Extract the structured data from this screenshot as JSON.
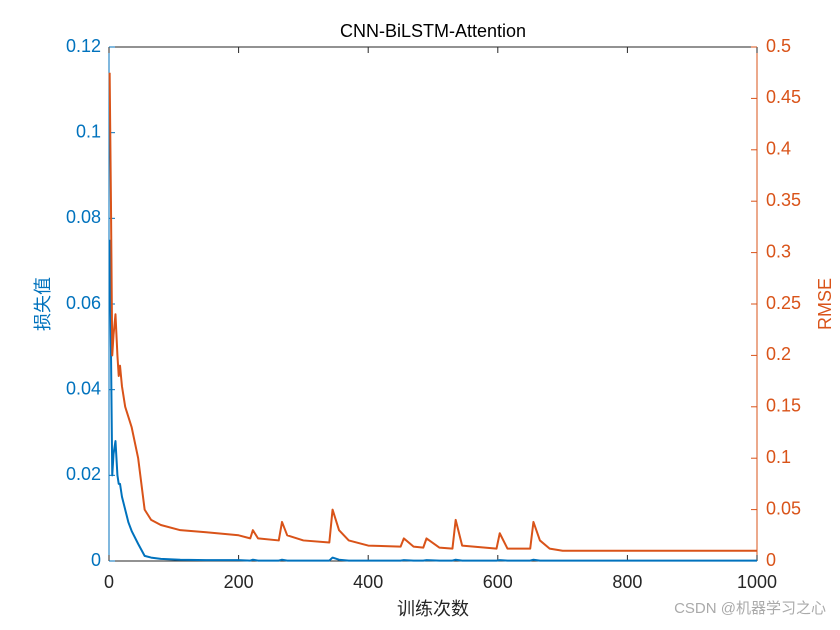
{
  "chart_data": {
    "type": "line",
    "title": "CNN-BiLSTM-Attention",
    "xlabel": "训练次数",
    "ylabel": "损失值",
    "y2label": "RMSE",
    "watermark": "CSDN @机器学习之心",
    "x": [
      1,
      3,
      5,
      7,
      10,
      13,
      15,
      17,
      20,
      25,
      30,
      35,
      45,
      55,
      65,
      80,
      110,
      150,
      200,
      218,
      222,
      230,
      262,
      267,
      275,
      300,
      340,
      345,
      355,
      370,
      400,
      450,
      455,
      470,
      485,
      490,
      510,
      530,
      535,
      545,
      598,
      603,
      615,
      650,
      655,
      665,
      680,
      700,
      1000
    ],
    "series": [
      {
        "name": "损失值",
        "color": "#0072BD",
        "axis": "y",
        "values": [
          0.075,
          0.05,
          0.02,
          0.025,
          0.028,
          0.02,
          0.018,
          0.018,
          0.015,
          0.012,
          0.009,
          0.007,
          0.004,
          0.0012,
          0.0008,
          0.0005,
          0.0003,
          0.0002,
          0.0002,
          0.0001,
          0.0003,
          0.0001,
          0.0001,
          0.0003,
          0.0001,
          0.0001,
          0.0001,
          0.0008,
          0.0003,
          0.0001,
          0.0001,
          0.0001,
          0.0002,
          0.0001,
          0.0001,
          0.0002,
          0.0001,
          0.0001,
          0.0003,
          0.0001,
          0.0001,
          0.0002,
          0.0001,
          0.0001,
          0.0003,
          0.0001,
          0.0001,
          0.0001,
          0.0001
        ]
      },
      {
        "name": "RMSE",
        "color": "#D95319",
        "axis": "y2",
        "values": [
          0.475,
          0.35,
          0.2,
          0.22,
          0.24,
          0.2,
          0.18,
          0.19,
          0.17,
          0.15,
          0.14,
          0.13,
          0.1,
          0.05,
          0.04,
          0.035,
          0.03,
          0.028,
          0.025,
          0.022,
          0.03,
          0.022,
          0.02,
          0.038,
          0.025,
          0.02,
          0.018,
          0.05,
          0.03,
          0.02,
          0.015,
          0.014,
          0.022,
          0.014,
          0.013,
          0.022,
          0.013,
          0.012,
          0.04,
          0.015,
          0.012,
          0.027,
          0.012,
          0.012,
          0.038,
          0.02,
          0.012,
          0.01,
          0.01
        ]
      }
    ],
    "xlim": [
      0,
      1000
    ],
    "xticks": [
      0,
      200,
      400,
      600,
      800,
      1000
    ],
    "ylim": [
      0,
      0.12
    ],
    "yticks": [
      0,
      0.02,
      0.04,
      0.06,
      0.08,
      0.1,
      0.12
    ],
    "y2lim": [
      0,
      0.5
    ],
    "y2ticks": [
      0,
      0.05,
      0.1,
      0.15,
      0.2,
      0.25,
      0.3,
      0.35,
      0.4,
      0.45,
      0.5
    ],
    "grid": false
  }
}
